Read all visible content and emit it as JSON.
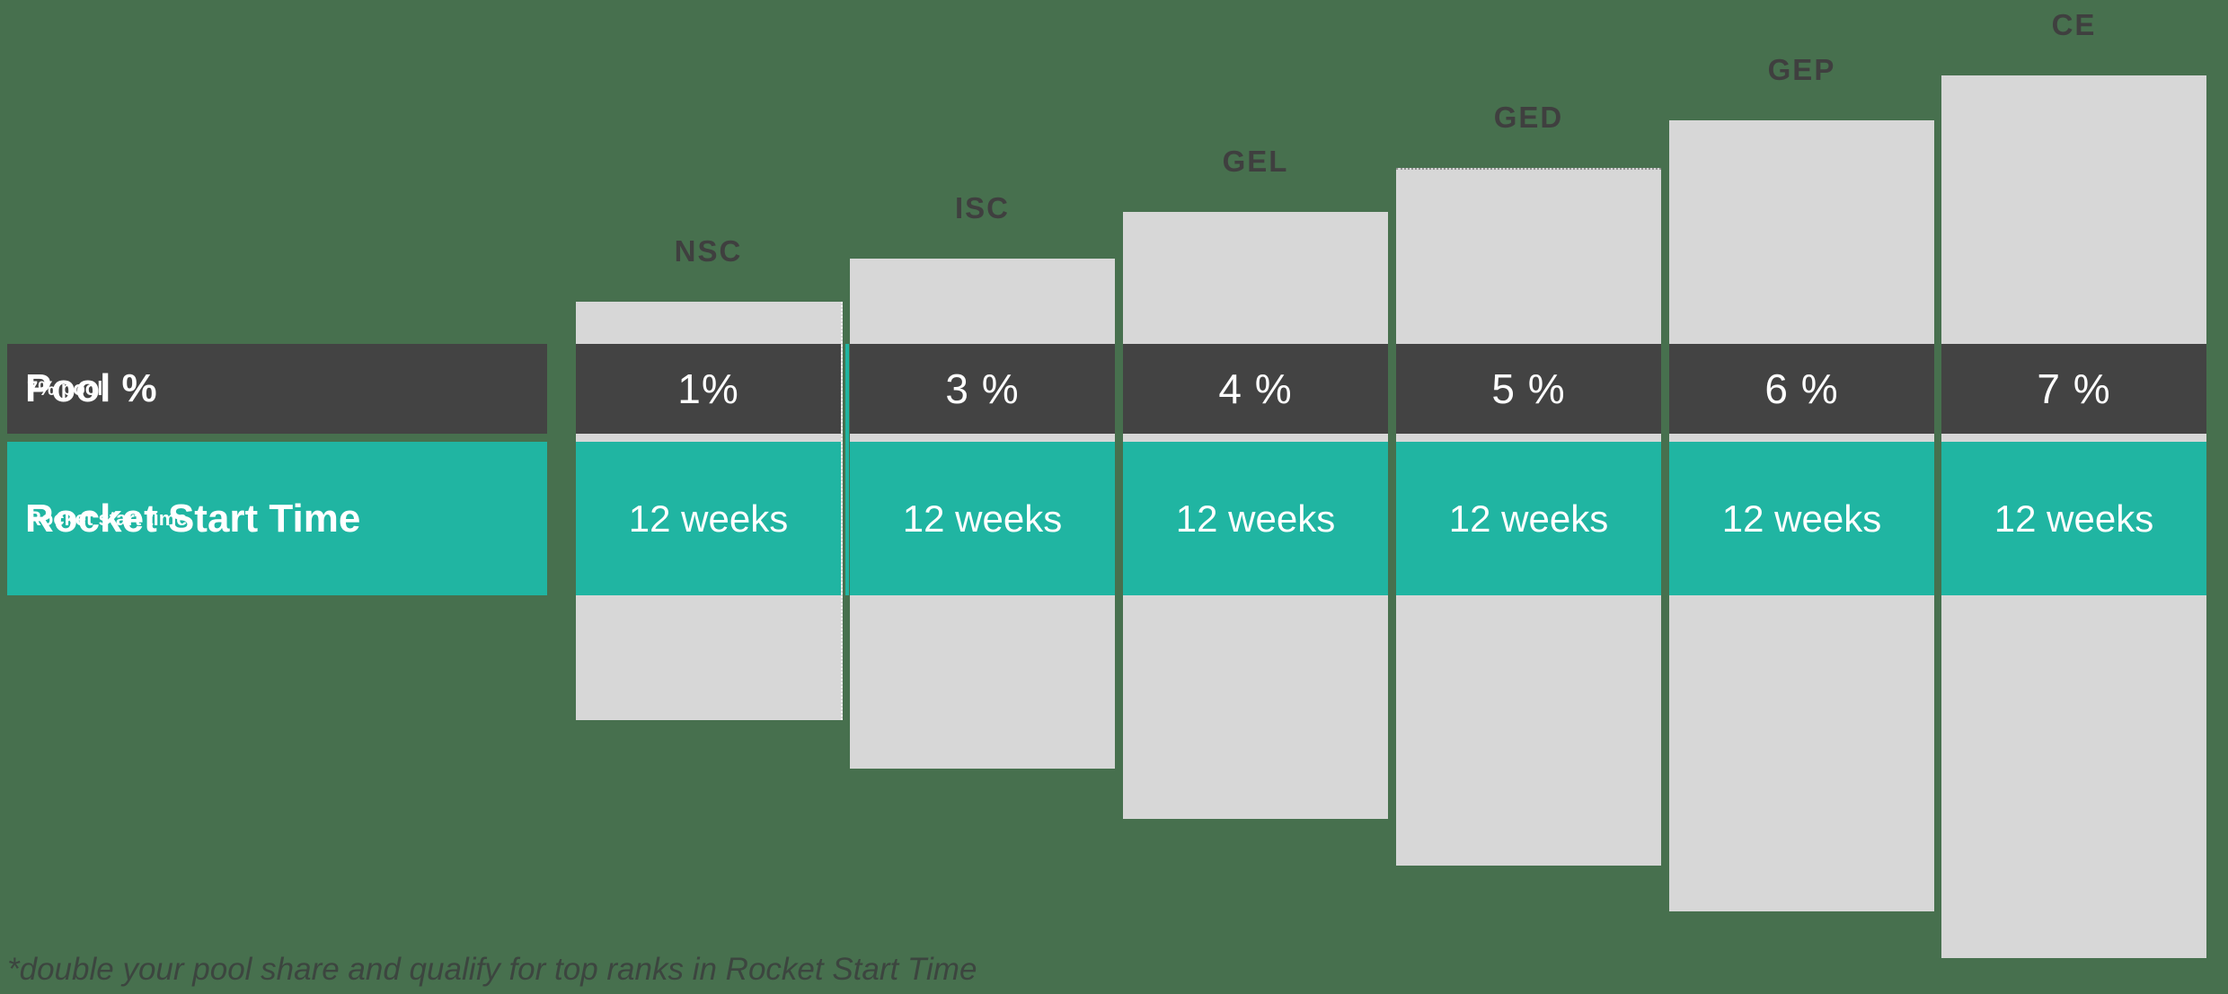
{
  "chart_data": {
    "type": "table",
    "title": "",
    "categories": [
      "NSC",
      "ISC",
      "GEL",
      "GED",
      "GEP",
      "CE"
    ],
    "series": [
      {
        "name": "Pool %",
        "values": [
          "1%",
          "3 %",
          "4 %",
          "5 %",
          "6 %",
          "7 %"
        ]
      },
      {
        "name": "Rocket Start Time",
        "values": [
          "12 weeks",
          "12 weeks",
          "12 weeks",
          "12 weeks",
          "12 weeks",
          "12 weeks"
        ]
      }
    ],
    "layout_hints": {
      "bar_heights_stair_step": "columns rise left to right",
      "legend_position": "none",
      "grid": false
    }
  },
  "rows": {
    "pool_label": "Pool %",
    "pool_ghost": "7% pool",
    "time_label": "Rocket Start Time",
    "time_ghost": "Rocket start time"
  },
  "footnote": "*double your pool share and qualify for top ranks in Rocket Start Time",
  "colors": {
    "background": "#47704E",
    "column_gray": "#D7D7D7",
    "band_dark": "#434343",
    "band_teal": "#20B5A2",
    "header_text": "#3F3F3F",
    "footnote_text": "#3C453F",
    "value_text": "#FFFFFF"
  }
}
